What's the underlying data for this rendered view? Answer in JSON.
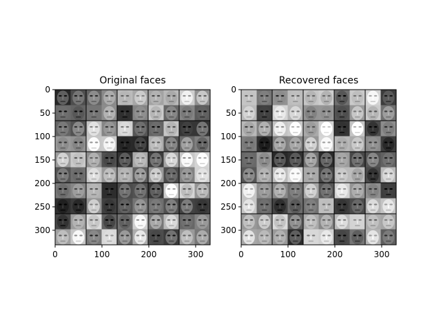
{
  "chart_data": [
    {
      "type": "image",
      "title": "Original faces",
      "xlim": [
        0,
        331
      ],
      "ylim": [
        331,
        0
      ],
      "xticks": [
        0,
        100,
        200,
        300
      ],
      "yticks": [
        0,
        50,
        100,
        150,
        200,
        250,
        300
      ]
    },
    {
      "type": "image",
      "title": "Recovered faces",
      "xlim": [
        0,
        331
      ],
      "ylim": [
        331,
        0
      ],
      "xticks": [
        0,
        100,
        200,
        300
      ],
      "yticks": [
        0,
        50,
        100,
        150,
        200,
        250,
        300
      ]
    }
  ]
}
